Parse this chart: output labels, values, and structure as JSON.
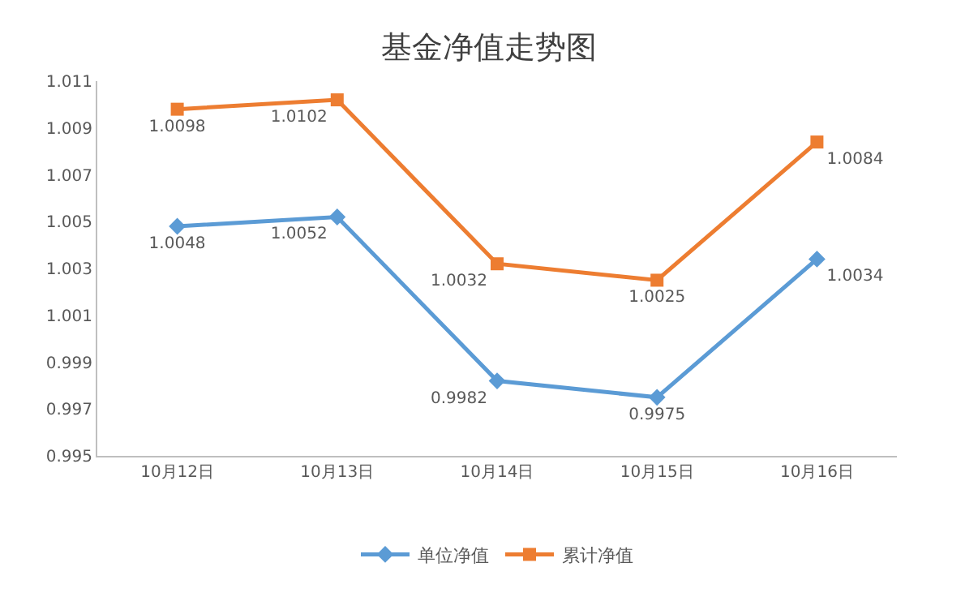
{
  "chart_data": {
    "type": "line",
    "title": "基金净值走势图",
    "categories": [
      "10月12日",
      "10月13日",
      "10月14日",
      "10月15日",
      "10月16日"
    ],
    "series": [
      {
        "name": "单位净值",
        "color": "#5b9bd5",
        "marker": "diamond",
        "values": [
          1.0048,
          1.0052,
          0.9982,
          0.9975,
          1.0034
        ]
      },
      {
        "name": "累计净值",
        "color": "#ed7d31",
        "marker": "square",
        "values": [
          1.0098,
          1.0102,
          1.0032,
          1.0025,
          1.0084
        ]
      }
    ],
    "ylim": [
      0.995,
      1.011
    ],
    "yticks": [
      "0.995",
      "0.997",
      "0.999",
      "1.001",
      "1.003",
      "1.005",
      "1.007",
      "1.009",
      "1.011"
    ],
    "legend": "bottom",
    "data_labels": true
  }
}
